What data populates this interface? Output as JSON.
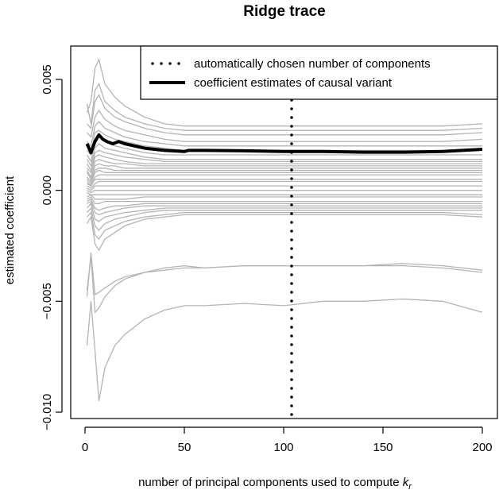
{
  "chart_data": {
    "type": "line",
    "title": "Ridge trace",
    "xlabel": "number of principal components used to compute ",
    "xlabel_math": "k",
    "xlabel_sub": "r",
    "ylabel": "estimated coefficient",
    "xlim": [
      0,
      200
    ],
    "ylim": [
      -0.01,
      0.0055
    ],
    "x_ticks": [
      0,
      50,
      100,
      150,
      200
    ],
    "x_tick_labels": [
      "0",
      "50",
      "100",
      "150",
      "200"
    ],
    "y_ticks": [
      -0.01,
      -0.005,
      0.0,
      0.005
    ],
    "y_tick_labels": [
      "−0.010",
      "−0.005",
      "0.000",
      "0.005"
    ],
    "grid": false,
    "legend_placement": "top-right",
    "legend": [
      {
        "label": "automatically chosen number of components",
        "style": "dotted"
      },
      {
        "label": "coefficient estimates of causal variant",
        "style": "thick-solid"
      }
    ],
    "vline": {
      "x": 104,
      "style": "dotted",
      "color": "#000000"
    },
    "causal_series": {
      "name": "coefficient estimates of causal variant",
      "color": "#000000",
      "x": [
        1,
        2,
        3,
        5,
        7,
        9,
        11,
        14,
        17,
        20,
        25,
        30,
        40,
        50,
        52,
        60,
        80,
        100,
        120,
        140,
        160,
        180,
        190,
        200
      ],
      "y": [
        0.0021,
        0.0019,
        0.0017,
        0.0022,
        0.0025,
        0.0023,
        0.0022,
        0.0021,
        0.0022,
        0.0021,
        0.002,
        0.0019,
        0.0018,
        0.00175,
        0.0018,
        0.0018,
        0.00178,
        0.00175,
        0.00175,
        0.00172,
        0.00172,
        0.00175,
        0.0018,
        0.00185
      ]
    },
    "background_series_color": "#b4b4b4",
    "background_series_x": [
      1,
      3,
      5,
      7,
      10,
      15,
      20,
      30,
      40,
      50,
      60,
      80,
      100,
      120,
      140,
      160,
      180,
      200
    ],
    "background_series": [
      {
        "y": [
          0.0035,
          0.004,
          0.0055,
          0.0059,
          0.0048,
          0.0042,
          0.0038,
          0.0033,
          0.003,
          0.0029,
          0.0029,
          0.0029,
          0.0029,
          0.0029,
          0.0029,
          0.0029,
          0.0029,
          0.003
        ]
      },
      {
        "y": [
          0.0039,
          0.003,
          0.0045,
          0.0048,
          0.004,
          0.0036,
          0.0033,
          0.003,
          0.0028,
          0.0027,
          0.0027,
          0.0027,
          0.0027,
          0.0027,
          0.0027,
          0.0027,
          0.0027,
          0.0028
        ]
      },
      {
        "y": [
          0.003,
          0.0028,
          0.004,
          0.0043,
          0.0037,
          0.0033,
          0.0031,
          0.0028,
          0.0026,
          0.0025,
          0.0025,
          0.0025,
          0.0025,
          0.0025,
          0.0025,
          0.0025,
          0.0025,
          0.0026
        ]
      },
      {
        "y": [
          0.0026,
          0.0024,
          0.0033,
          0.0036,
          0.0032,
          0.0029,
          0.0027,
          0.0025,
          0.0023,
          0.0022,
          0.0022,
          0.0022,
          0.0022,
          0.0022,
          0.0022,
          0.0022,
          0.0022,
          0.0023
        ]
      },
      {
        "y": [
          0.0022,
          0.002,
          0.0029,
          0.0031,
          0.0028,
          0.0026,
          0.0024,
          0.0022,
          0.0021,
          0.002,
          0.002,
          0.002,
          0.002,
          0.002,
          0.002,
          0.002,
          0.002,
          0.002
        ]
      },
      {
        "y": [
          0.0018,
          0.0016,
          0.0026,
          0.0027,
          0.0025,
          0.0023,
          0.0022,
          0.002,
          0.0019,
          0.0018,
          0.0018,
          0.0018,
          0.0018,
          0.0018,
          0.0018,
          0.0018,
          0.0018,
          0.0019
        ]
      },
      {
        "y": [
          0.0016,
          0.0013,
          0.0022,
          0.0024,
          0.0022,
          0.002,
          0.0019,
          0.0017,
          0.0016,
          0.0016,
          0.0016,
          0.0016,
          0.0016,
          0.0016,
          0.0016,
          0.0016,
          0.0016,
          0.0016
        ]
      },
      {
        "y": [
          0.0014,
          0.0011,
          0.0019,
          0.0021,
          0.0019,
          0.0018,
          0.0017,
          0.0015,
          0.0014,
          0.0014,
          0.0014,
          0.0014,
          0.0014,
          0.0014,
          0.0014,
          0.0014,
          0.0014,
          0.0014
        ]
      },
      {
        "y": [
          0.0012,
          0.0009,
          0.0017,
          0.0018,
          0.0017,
          0.0016,
          0.0015,
          0.0014,
          0.0013,
          0.0013,
          0.0013,
          0.0013,
          0.0013,
          0.0013,
          0.0013,
          0.0013,
          0.0013,
          0.0013
        ]
      },
      {
        "y": [
          0.001,
          0.0008,
          0.0015,
          0.0016,
          0.0015,
          0.0014,
          0.0013,
          0.0012,
          0.0012,
          0.0012,
          0.0012,
          0.0012,
          0.0012,
          0.0012,
          0.0012,
          0.0012,
          0.0012,
          0.0012
        ]
      },
      {
        "y": [
          0.0009,
          0.0006,
          0.0013,
          0.0014,
          0.0013,
          0.0012,
          0.0012,
          0.0011,
          0.0011,
          0.0011,
          0.0011,
          0.0011,
          0.0011,
          0.0011,
          0.0011,
          0.0011,
          0.0011,
          0.0011
        ]
      },
      {
        "y": [
          0.0008,
          0.0005,
          0.0011,
          0.0012,
          0.0011,
          0.0011,
          0.001,
          0.001,
          0.001,
          0.001,
          0.001,
          0.001,
          0.001,
          0.001,
          0.001,
          0.001,
          0.001,
          0.001
        ]
      },
      {
        "y": [
          0.0006,
          0.0004,
          0.0009,
          0.001,
          0.001,
          0.0009,
          0.0009,
          0.0009,
          0.0009,
          0.0009,
          0.0009,
          0.0009,
          0.0009,
          0.0009,
          0.0009,
          0.0009,
          0.0009,
          0.0009
        ]
      },
      {
        "y": [
          0.0005,
          0.0003,
          0.0008,
          0.0009,
          0.0008,
          0.0008,
          0.0008,
          0.0008,
          0.0008,
          0.0008,
          0.0008,
          0.0008,
          0.0008,
          0.0008,
          0.0008,
          0.0008,
          0.0008,
          0.0008
        ]
      },
      {
        "y": [
          0.0004,
          0.0002,
          0.0006,
          0.0007,
          0.0007,
          0.0007,
          0.0007,
          0.0007,
          0.0007,
          0.0007,
          0.0007,
          0.0007,
          0.0007,
          0.0007,
          0.0007,
          0.0007,
          0.0007,
          0.0007
        ]
      },
      {
        "y": [
          0.0003,
          0.0002,
          0.0005,
          0.0005,
          0.0005,
          0.0005,
          0.0005,
          0.0005,
          0.0005,
          0.0005,
          0.0005,
          0.0005,
          0.0005,
          0.0005,
          0.0005,
          0.0005,
          0.0005,
          0.0005
        ]
      },
      {
        "y": [
          0.0002,
          0.0001,
          0.0003,
          0.0004,
          0.0004,
          0.0004,
          0.0004,
          0.0004,
          0.0004,
          0.0004,
          0.0004,
          0.0004,
          0.0004,
          0.0004,
          0.0004,
          0.0004,
          0.0004,
          0.0004
        ]
      },
      {
        "y": [
          0.0001,
          0.0,
          0.0002,
          0.0002,
          0.0002,
          0.0002,
          0.0002,
          0.0002,
          0.0002,
          0.0002,
          0.0002,
          0.0002,
          0.0002,
          0.0002,
          0.0002,
          0.0002,
          0.0002,
          0.0002
        ]
      },
      {
        "y": [
          0.0,
          -0.0001,
          0.0,
          0.0,
          0.0,
          0.0,
          0.0,
          0.0,
          0.0,
          0.0,
          0.0,
          0.0,
          0.0,
          0.0,
          0.0,
          0.0,
          0.0,
          0.0
        ]
      },
      {
        "y": [
          -0.0001,
          -0.0002,
          -0.0002,
          -0.0002,
          -0.0002,
          -0.0002,
          -0.0002,
          -0.0002,
          -0.0002,
          -0.0002,
          -0.0002,
          -0.0002,
          -0.0002,
          -0.0002,
          -0.0002,
          -0.0002,
          -0.0002,
          -0.0002
        ]
      },
      {
        "y": [
          -0.0003,
          -0.0002,
          -0.0004,
          -0.0004,
          -0.0004,
          -0.0004,
          -0.0004,
          -0.0003,
          -0.0003,
          -0.0003,
          -0.0003,
          -0.0003,
          -0.0003,
          -0.0003,
          -0.0003,
          -0.0003,
          -0.0003,
          -0.0003
        ]
      },
      {
        "y": [
          -0.0004,
          -0.0003,
          -0.0006,
          -0.0006,
          -0.0005,
          -0.0005,
          -0.0005,
          -0.0005,
          -0.0005,
          -0.0005,
          -0.0005,
          -0.0005,
          -0.0005,
          -0.0005,
          -0.0005,
          -0.0005,
          -0.0005,
          -0.0005
        ]
      },
      {
        "y": [
          -0.0005,
          -0.0004,
          -0.0008,
          -0.0009,
          -0.0008,
          -0.0007,
          -0.0007,
          -0.0006,
          -0.0006,
          -0.0006,
          -0.0006,
          -0.0006,
          -0.0006,
          -0.0006,
          -0.0006,
          -0.0006,
          -0.0006,
          -0.0006
        ]
      },
      {
        "y": [
          -0.0006,
          -0.0005,
          -0.001,
          -0.0011,
          -0.001,
          -0.0009,
          -0.0008,
          -0.0007,
          -0.0007,
          -0.0007,
          -0.0007,
          -0.0007,
          -0.0007,
          -0.0007,
          -0.0007,
          -0.0007,
          -0.0007,
          -0.0007
        ]
      },
      {
        "y": [
          -0.0008,
          -0.0006,
          -0.0013,
          -0.0014,
          -0.0012,
          -0.0011,
          -0.001,
          -0.0009,
          -0.0008,
          -0.0008,
          -0.0008,
          -0.0008,
          -0.0008,
          -0.0008,
          -0.0008,
          -0.0008,
          -0.0008,
          -0.0008
        ]
      },
      {
        "y": [
          -0.001,
          -0.0008,
          -0.0016,
          -0.0018,
          -0.0015,
          -0.0013,
          -0.0012,
          -0.001,
          -0.0009,
          -0.0009,
          -0.0009,
          -0.0009,
          -0.0009,
          -0.0009,
          -0.0009,
          -0.0009,
          -0.0009,
          -0.0009
        ]
      },
      {
        "y": [
          -0.0012,
          -0.001,
          -0.002,
          -0.0022,
          -0.0018,
          -0.0016,
          -0.0014,
          -0.0012,
          -0.0011,
          -0.001,
          -0.001,
          -0.001,
          -0.001,
          -0.001,
          -0.001,
          -0.001,
          -0.001,
          -0.0011
        ]
      },
      {
        "y": [
          -0.0015,
          -0.0012,
          -0.0024,
          -0.0027,
          -0.0022,
          -0.0019,
          -0.0016,
          -0.0013,
          -0.0012,
          -0.0011,
          -0.0011,
          -0.0011,
          -0.0011,
          -0.0011,
          -0.0011,
          -0.0011,
          -0.0011,
          -0.0012
        ]
      },
      {
        "y": [
          -0.0048,
          -0.0028,
          -0.0047,
          -0.0046,
          -0.0044,
          -0.0041,
          -0.0039,
          -0.0037,
          -0.0036,
          -0.0035,
          -0.0035,
          -0.0034,
          -0.0034,
          -0.0034,
          -0.0034,
          -0.0034,
          -0.0035,
          -0.0037
        ]
      },
      {
        "y": [
          -0.0045,
          -0.003,
          -0.0055,
          -0.0053,
          -0.0048,
          -0.0043,
          -0.004,
          -0.0037,
          -0.0035,
          -0.0034,
          -0.0035,
          -0.0034,
          -0.0034,
          -0.0034,
          -0.0034,
          -0.0033,
          -0.0034,
          -0.0036
        ]
      },
      {
        "y": [
          -0.007,
          -0.005,
          -0.0072,
          -0.0095,
          -0.008,
          -0.007,
          -0.0065,
          -0.0058,
          -0.0054,
          -0.0052,
          -0.0052,
          -0.0051,
          -0.0052,
          -0.005,
          -0.005,
          -0.0049,
          -0.005,
          -0.0055
        ]
      }
    ]
  }
}
